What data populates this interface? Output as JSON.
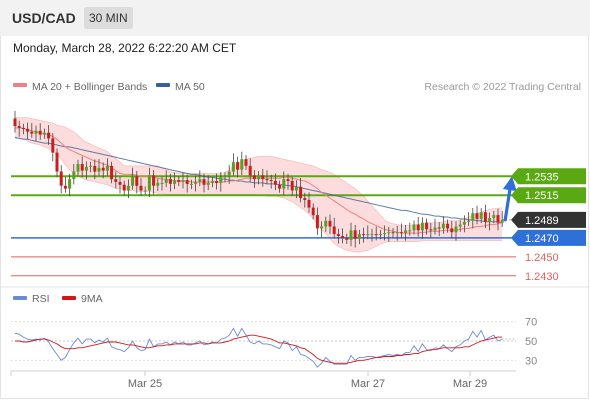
{
  "header": {
    "pair": "USD/CAD",
    "timeframe": "30 MIN"
  },
  "datetime": "Monday, March 28, 2022 6:22:20 AM CET",
  "legend": {
    "bollinger": "MA 20 + Bollinger Bands",
    "ma50": "MA 50",
    "credit": "Research © 2022 Trading Central",
    "rsi": "RSI",
    "rsi_ma": "9MA"
  },
  "colors": {
    "bollinger": "#f08080",
    "band_fill": "#fbd0d0",
    "ma50": "#3a5f9c",
    "resistance": "#5aa913",
    "pivot": "#2e6fd8",
    "support": "#e06060",
    "current": "#333333",
    "candle_up": "#5c9e23",
    "candle_down": "#c81e1e",
    "forecast_arrow": "#2e6fd8",
    "rsi": "#6a8bd6",
    "rsi_ma": "#d01818"
  },
  "chart_data": {
    "type": "candlestick",
    "instrument": "USD/CAD",
    "timeframe": "30 MIN",
    "ylim": [
      1.2415,
      1.2625
    ],
    "levels": [
      {
        "value": 1.2535,
        "label": "1.2535",
        "kind": "resistance"
      },
      {
        "value": 1.2515,
        "label": "1.2515",
        "kind": "resistance"
      },
      {
        "value": 1.2489,
        "label": "1.2489",
        "kind": "current"
      },
      {
        "value": 1.247,
        "label": "1.2470",
        "kind": "pivot"
      },
      {
        "value": 1.245,
        "label": "1.2450",
        "kind": "support"
      },
      {
        "value": 1.243,
        "label": "1.2430",
        "kind": "support"
      }
    ],
    "x_ticks": [
      "Mar 25",
      "Mar 27",
      "Mar 29"
    ],
    "close": [
      1.2588,
      1.2586,
      1.2585,
      1.2582,
      1.258,
      1.2583,
      1.2579,
      1.2581,
      1.2575,
      1.256,
      1.254,
      1.2525,
      1.2522,
      1.2532,
      1.254,
      1.2548,
      1.2541,
      1.2545,
      1.2546,
      1.254,
      1.2544,
      1.2541,
      1.2546,
      1.2532,
      1.2529,
      1.2526,
      1.252,
      1.2525,
      1.2535,
      1.2525,
      1.252,
      1.252,
      1.2536,
      1.2525,
      1.2528,
      1.2528,
      1.2532,
      1.2527,
      1.2531,
      1.2529,
      1.2531,
      1.2527,
      1.2527,
      1.2529,
      1.2532,
      1.2526,
      1.2528,
      1.253,
      1.2528,
      1.2534,
      1.2535,
      1.254,
      1.255,
      1.2542,
      1.2553,
      1.2546,
      1.2536,
      1.2532,
      1.2536,
      1.2532,
      1.2531,
      1.253,
      1.2526,
      1.2522,
      1.2532,
      1.253,
      1.252,
      1.2524,
      1.2512,
      1.251,
      1.2502,
      1.2494,
      1.248,
      1.2482,
      1.2488,
      1.2482,
      1.2474,
      1.2472,
      1.247,
      1.2468,
      1.2478,
      1.2469,
      1.2474,
      1.2473,
      1.2474,
      1.2474,
      1.2473,
      1.2474,
      1.2475,
      1.2476,
      1.2475,
      1.2476,
      1.2475,
      1.2478,
      1.2478,
      1.2484,
      1.2478,
      1.2486,
      1.2479,
      1.2478,
      1.2481,
      1.248,
      1.2485,
      1.248,
      1.2476,
      1.2482,
      1.2484,
      1.2487,
      1.2488,
      1.2496,
      1.249,
      1.2497,
      1.2487,
      1.2491,
      1.2494,
      1.2486,
      1.2489
    ],
    "ma20": [
      1.2586,
      1.2586,
      1.2586,
      1.2584,
      1.2583,
      1.2582,
      1.2581,
      1.258,
      1.2579,
      1.2577,
      1.2574,
      1.257,
      1.2566,
      1.2563,
      1.2561,
      1.2559,
      1.2557,
      1.2555,
      1.2553,
      1.2551,
      1.255,
      1.2548,
      1.2547,
      1.2544,
      1.2541,
      1.2538,
      1.2537,
      1.2537,
      1.2537,
      1.2536,
      1.2535,
      1.2535,
      1.2535,
      1.2534,
      1.2533,
      1.2532,
      1.2532,
      1.2531,
      1.253,
      1.253,
      1.253,
      1.253,
      1.2529,
      1.2529,
      1.2529,
      1.2529,
      1.2529,
      1.2529,
      1.2529,
      1.2529,
      1.2529,
      1.253,
      1.253,
      1.2531,
      1.2532,
      1.2533,
      1.2533,
      1.2533,
      1.2533,
      1.2533,
      1.2533,
      1.2533,
      1.2533,
      1.2533,
      1.2534,
      1.2534,
      1.2533,
      1.2532,
      1.2531,
      1.253,
      1.2528,
      1.2525,
      1.2522,
      1.2518,
      1.2515,
      1.2512,
      1.2509,
      1.2506,
      1.2503,
      1.25,
      1.2497,
      1.2495,
      1.2492,
      1.249,
      1.2487,
      1.2485,
      1.2483,
      1.2481,
      1.2479,
      1.2478,
      1.2477,
      1.2476,
      1.2475,
      1.2475,
      1.2475,
      1.2475,
      1.2475,
      1.2476,
      1.2476,
      1.2477,
      1.2477,
      1.2477,
      1.2478,
      1.2478,
      1.2478,
      1.2478,
      1.2479,
      1.248,
      1.248,
      1.2481,
      1.2482,
      1.2482,
      1.2483,
      1.2484,
      1.2484,
      1.2485,
      1.2486
    ],
    "bb_upper": [
      1.2597,
      1.2597,
      1.2597,
      1.2597,
      1.2596,
      1.2595,
      1.2594,
      1.2593,
      1.2592,
      1.2591,
      1.2589,
      1.2588,
      1.2587,
      1.2584,
      1.2582,
      1.2578,
      1.2574,
      1.2571,
      1.2569,
      1.2567,
      1.2565,
      1.2563,
      1.2561,
      1.2557,
      1.2554,
      1.255,
      1.2546,
      1.2546,
      1.2546,
      1.2546,
      1.2546,
      1.2546,
      1.2546,
      1.2546,
      1.2546,
      1.2544,
      1.2542,
      1.254,
      1.2539,
      1.2539,
      1.2538,
      1.2538,
      1.2538,
      1.2538,
      1.2538,
      1.2538,
      1.2538,
      1.2538,
      1.2538,
      1.2538,
      1.2539,
      1.2542,
      1.2546,
      1.2548,
      1.2551,
      1.2553,
      1.2554,
      1.2555,
      1.2556,
      1.2556,
      1.2556,
      1.2556,
      1.2555,
      1.2554,
      1.2553,
      1.2552,
      1.2551,
      1.255,
      1.2549,
      1.2548,
      1.2547,
      1.2546,
      1.2544,
      1.2542,
      1.2541,
      1.2539,
      1.2537,
      1.2534,
      1.2531,
      1.2528,
      1.2525,
      1.2522,
      1.2518,
      1.2514,
      1.2509,
      1.2504,
      1.2499,
      1.2494,
      1.2489,
      1.2486,
      1.2485,
      1.2484,
      1.2483,
      1.2483,
      1.2483,
      1.2484,
      1.2484,
      1.2485,
      1.2486,
      1.2486,
      1.2486,
      1.2486,
      1.2487,
      1.2488,
      1.2488,
      1.2488,
      1.2489,
      1.249,
      1.2492,
      1.2494,
      1.2496,
      1.2497,
      1.2499,
      1.25,
      1.2501,
      1.2501,
      1.2502
    ],
    "bb_lower": [
      1.2575,
      1.2575,
      1.2575,
      1.2572,
      1.257,
      1.2569,
      1.2568,
      1.2566,
      1.2564,
      1.2561,
      1.2558,
      1.2553,
      1.2547,
      1.2542,
      1.2538,
      1.2535,
      1.2533,
      1.2531,
      1.253,
      1.2529,
      1.2528,
      1.2527,
      1.2526,
      1.2524,
      1.2522,
      1.2522,
      1.2521,
      1.252,
      1.252,
      1.2519,
      1.2519,
      1.2519,
      1.2519,
      1.2518,
      1.2517,
      1.2517,
      1.2516,
      1.2516,
      1.2516,
      1.2516,
      1.2516,
      1.2516,
      1.2516,
      1.2516,
      1.2516,
      1.2516,
      1.2516,
      1.2516,
      1.2516,
      1.2516,
      1.2516,
      1.2516,
      1.2516,
      1.2516,
      1.2516,
      1.2516,
      1.2516,
      1.2516,
      1.2515,
      1.2515,
      1.2514,
      1.2514,
      1.2514,
      1.2513,
      1.2512,
      1.251,
      1.2508,
      1.2505,
      1.2502,
      1.2499,
      1.2495,
      1.249,
      1.2485,
      1.2479,
      1.2474,
      1.2469,
      1.2464,
      1.2461,
      1.2459,
      1.2457,
      1.2456,
      1.2455,
      1.2455,
      1.2456,
      1.2457,
      1.2459,
      1.2461,
      1.2463,
      1.2465,
      1.2466,
      1.2466,
      1.2466,
      1.2466,
      1.2466,
      1.2466,
      1.2466,
      1.2466,
      1.2467,
      1.2467,
      1.2467,
      1.2467,
      1.2467,
      1.2467,
      1.2467,
      1.2467,
      1.2467,
      1.2467,
      1.2467,
      1.2467,
      1.2467,
      1.2467,
      1.2467,
      1.2467,
      1.2467,
      1.2467,
      1.2467,
      1.2467
    ],
    "ma50": [
      1.2576,
      1.2575,
      1.2574,
      1.2574,
      1.2573,
      1.2572,
      1.2571,
      1.257,
      1.257,
      1.2569,
      1.2568,
      1.2567,
      1.2566,
      1.2566,
      1.2565,
      1.2564,
      1.2563,
      1.2562,
      1.2561,
      1.256,
      1.2559,
      1.2558,
      1.2557,
      1.2556,
      1.2555,
      1.2554,
      1.2553,
      1.2552,
      1.2551,
      1.255,
      1.2549,
      1.2548,
      1.2547,
      1.2546,
      1.2545,
      1.2544,
      1.2543,
      1.2542,
      1.2541,
      1.254,
      1.2539,
      1.2538,
      1.2537,
      1.2537,
      1.2536,
      1.2535,
      1.2534,
      1.2534,
      1.2533,
      1.2532,
      1.2532,
      1.2531,
      1.2531,
      1.253,
      1.253,
      1.2529,
      1.2529,
      1.2528,
      1.2528,
      1.2528,
      1.2527,
      1.2527,
      1.2527,
      1.2526,
      1.2526,
      1.2525,
      1.2525,
      1.2524,
      1.2523,
      1.2522,
      1.2521,
      1.252,
      1.2519,
      1.2518,
      1.2517,
      1.2516,
      1.2515,
      1.2514,
      1.2513,
      1.2512,
      1.2511,
      1.251,
      1.2509,
      1.2508,
      1.2507,
      1.2506,
      1.2505,
      1.2504,
      1.2503,
      1.2502,
      1.2501,
      1.25,
      1.2499,
      1.2499,
      1.2498,
      1.2497,
      1.2496,
      1.2495,
      1.2495,
      1.2494,
      1.2493,
      1.2493,
      1.2492,
      1.2492,
      1.2491,
      1.2491,
      1.249,
      1.249,
      1.2489,
      1.2489,
      1.2488,
      1.2488,
      1.2487,
      1.2487,
      1.2487,
      1.2487,
      1.2486
    ],
    "forecast": {
      "from": 1.2489,
      "to": 1.2535
    },
    "rsi": {
      "ylim": [
        20,
        80
      ],
      "ticks": [
        70,
        50,
        30
      ],
      "rsi": [
        58,
        57,
        54,
        52,
        51,
        52,
        51,
        53,
        49,
        42,
        36,
        30,
        33,
        41,
        48,
        53,
        47,
        52,
        52,
        48,
        51,
        49,
        53,
        44,
        42,
        41,
        39,
        43,
        50,
        43,
        40,
        41,
        52,
        44,
        47,
        47,
        49,
        46,
        49,
        47,
        49,
        46,
        46,
        48,
        50,
        46,
        47,
        49,
        48,
        52,
        53,
        56,
        63,
        55,
        63,
        56,
        49,
        47,
        50,
        47,
        47,
        46,
        44,
        42,
        50,
        48,
        40,
        44,
        36,
        35,
        32,
        29,
        23,
        27,
        33,
        29,
        26,
        26,
        26,
        26,
        35,
        30,
        33,
        33,
        34,
        34,
        33,
        34,
        35,
        36,
        35,
        36,
        35,
        38,
        38,
        45,
        39,
        47,
        41,
        40,
        43,
        42,
        46,
        42,
        39,
        44,
        46,
        50,
        52,
        60,
        54,
        61,
        51,
        54,
        56,
        50,
        52
      ],
      "ma9": [
        50,
        50,
        49,
        49,
        50,
        51,
        52,
        52,
        51,
        49,
        47,
        44,
        42,
        42,
        42,
        43,
        43,
        44,
        45,
        46,
        47,
        48,
        49,
        49,
        49,
        48,
        47,
        46,
        46,
        45,
        44,
        43,
        43,
        44,
        45,
        45,
        46,
        46,
        47,
        47,
        47,
        47,
        47,
        47,
        48,
        48,
        47,
        48,
        48,
        48,
        49,
        50,
        52,
        53,
        54,
        55,
        56,
        56,
        55,
        54,
        53,
        52,
        50,
        48,
        48,
        47,
        46,
        45,
        43,
        42,
        39,
        36,
        32,
        30,
        29,
        28,
        27,
        27,
        27,
        27,
        28,
        29,
        30,
        30,
        31,
        32,
        33,
        33,
        34,
        34,
        34,
        35,
        35,
        36,
        36,
        37,
        37,
        39,
        40,
        41,
        41,
        42,
        43,
        43,
        43,
        43,
        43,
        44,
        44,
        46,
        48,
        50,
        51,
        52,
        53,
        54,
        54
      ]
    }
  }
}
